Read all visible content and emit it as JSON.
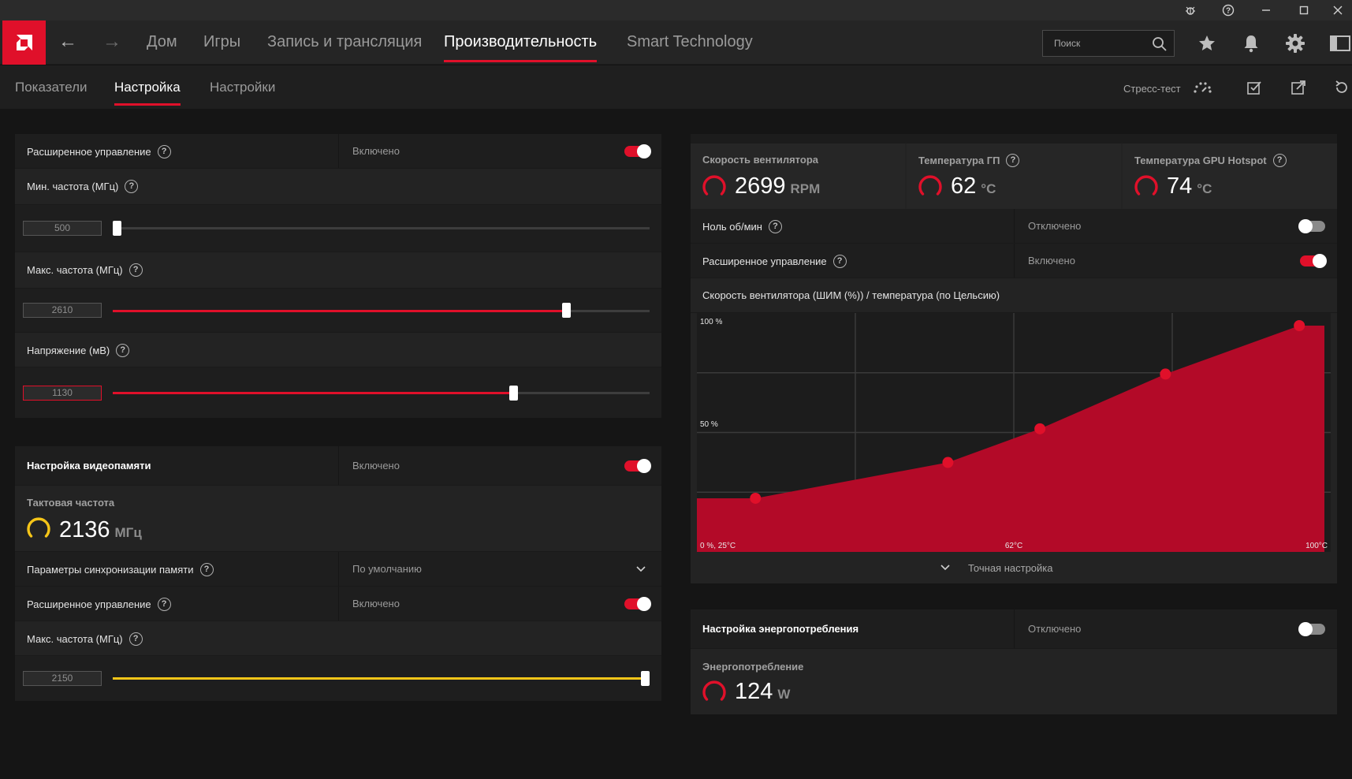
{
  "window": {
    "controls": [
      "bug-icon",
      "help-icon",
      "minimize-icon",
      "maximize-icon",
      "close-icon"
    ]
  },
  "nav": {
    "items": [
      {
        "label": "Дом"
      },
      {
        "label": "Игры"
      },
      {
        "label": "Запись и трансляция"
      },
      {
        "label": "Производительность",
        "active": true
      },
      {
        "label": "Smart Technology"
      }
    ],
    "search_placeholder": "Поиск"
  },
  "subnav": {
    "tabs": [
      {
        "label": "Показатели"
      },
      {
        "label": "Настройка",
        "active": true
      },
      {
        "label": "Настройки"
      }
    ],
    "stress_test": "Стресс-тест"
  },
  "gpu": {
    "advanced": {
      "label": "Расширенное управление",
      "value": "Включено",
      "on": true
    },
    "min_freq": {
      "label": "Мин. частота (МГц)",
      "value": "500",
      "fraction": 0.0
    },
    "max_freq": {
      "label": "Макс. частота (МГц)",
      "value": "2610",
      "fraction": 0.85
    },
    "voltage": {
      "label": "Напряжение (мВ)",
      "value": "1130",
      "fraction": 0.75
    }
  },
  "vram": {
    "title": "Настройка видеопамяти",
    "state": "Включено",
    "on": true,
    "clock_label": "Тактовая частота",
    "clock_value": "2136",
    "clock_unit": "МГц",
    "timing": {
      "label": "Параметры синхронизации памяти",
      "value": "По умолчанию"
    },
    "advanced": {
      "label": "Расширенное управление",
      "value": "Включено",
      "on": true
    },
    "max_freq": {
      "label": "Макс. частота (МГц)",
      "value": "2150",
      "fraction": 1.0
    }
  },
  "fan": {
    "stats": [
      {
        "label": "Скорость вентилятора",
        "value": "2699",
        "unit": "RPM",
        "help": false
      },
      {
        "label": "Температура ГП",
        "value": "62",
        "unit": "°C",
        "help": true
      },
      {
        "label": "Температура GPU Hotspot",
        "value": "74",
        "unit": "°C",
        "help": true
      }
    ],
    "zero_rpm": {
      "label": "Ноль об/мин",
      "value": "Отключено",
      "on": false
    },
    "advanced": {
      "label": "Расширенное управление",
      "value": "Включено",
      "on": true
    },
    "curve_title": "Скорость вентилятора (ШИМ (%)) / температура (по Цельсию)",
    "fine_tune": "Точная настройка"
  },
  "power": {
    "title": "Настройка энергопотребления",
    "state": "Отключено",
    "on": false,
    "label": "Энергопотребление",
    "value": "124",
    "unit": "W"
  },
  "chart_data": {
    "type": "area",
    "title": "Скорость вентилятора (ШИМ (%)) / температура (по Цельсию)",
    "y_tick_labels": [
      "100 %",
      "50 %"
    ],
    "x_tick_labels": [
      "0 %, 25°C",
      "62°C",
      "100°C"
    ],
    "xlim": [
      25,
      100
    ],
    "ylim": [
      0,
      100
    ],
    "series": [
      {
        "x": [
          25,
          32,
          55,
          66,
          81,
          97,
          100
        ],
        "y": [
          15,
          15,
          32,
          48,
          74,
          97,
          97
        ]
      }
    ],
    "points": [
      {
        "x": 32,
        "y": 15
      },
      {
        "x": 55,
        "y": 32
      },
      {
        "x": 66,
        "y": 48
      },
      {
        "x": 81,
        "y": 74
      },
      {
        "x": 97,
        "y": 97
      }
    ],
    "fill_color": "#b30a28",
    "point_color": "#e0102a"
  },
  "colors": {
    "accent": "#e0102a",
    "vram": "#f5c518"
  }
}
